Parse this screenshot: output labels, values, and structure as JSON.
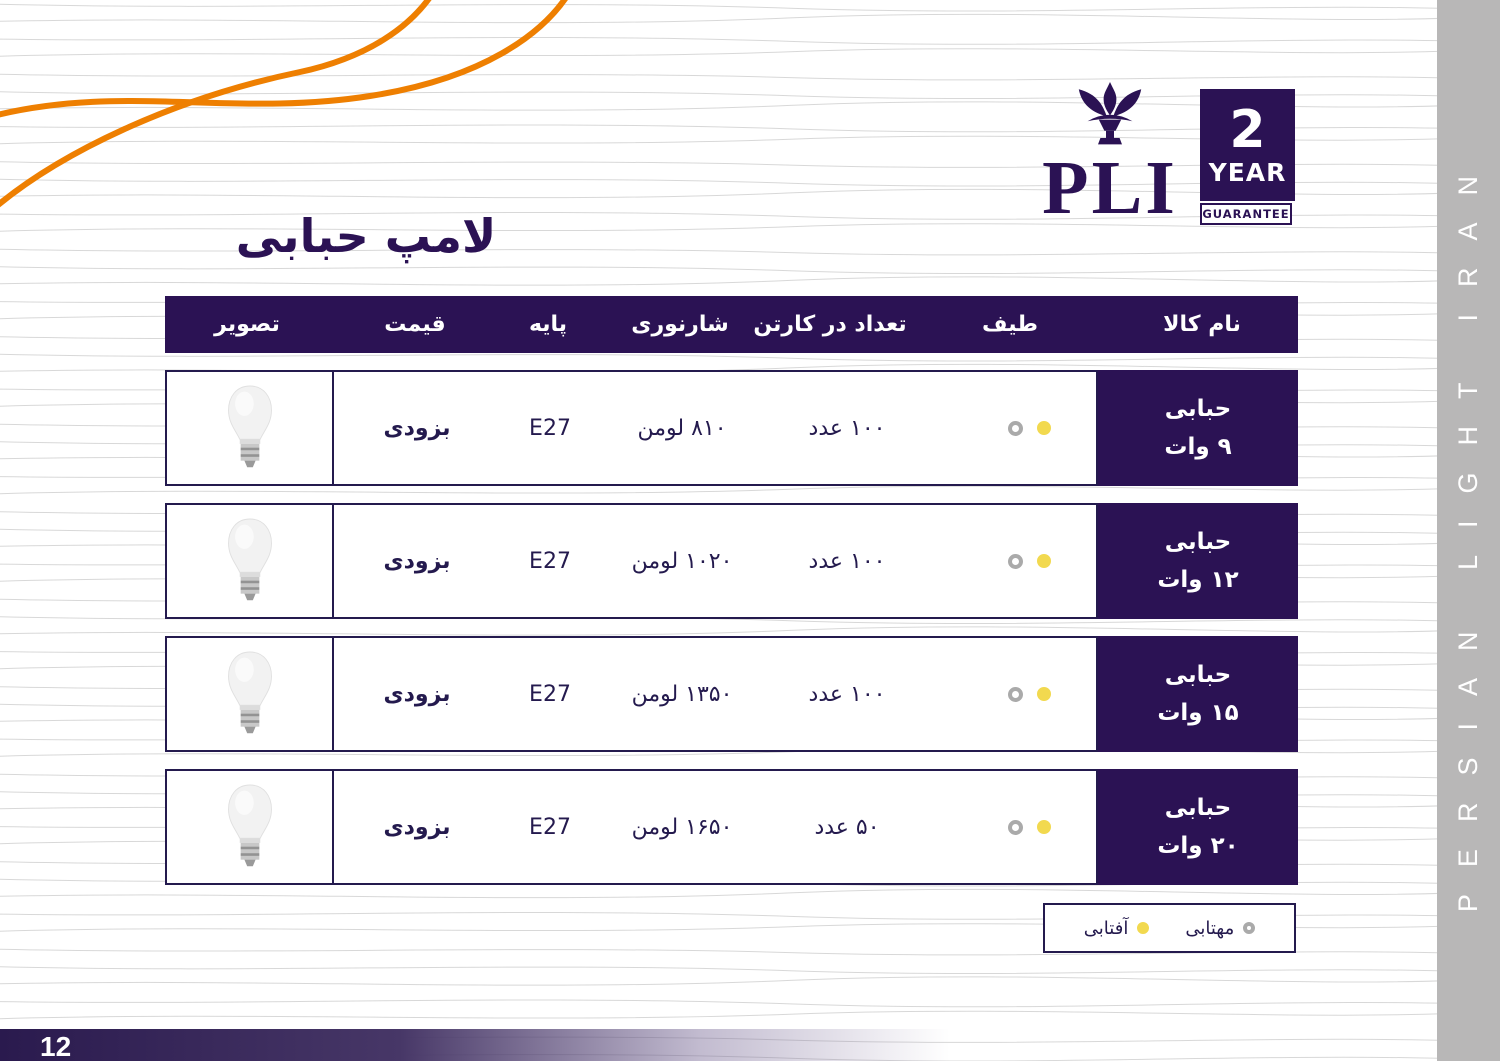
{
  "page": {
    "title": "لامپ حبابی",
    "page_number": "12",
    "side_text": "PERSIAN LIGHT IRAN"
  },
  "brand": {
    "logo_text": "PLI",
    "badge_number": "2",
    "badge_year": "YEAR",
    "badge_guarantee": "GUARANTEE"
  },
  "table": {
    "headers": {
      "name": "نام کالا",
      "spectrum": "طیف",
      "qty_per_carton": "تعداد در کارتن",
      "lumen": "شارنوری",
      "base": "پایه",
      "price": "قیمت",
      "image": "تصویر"
    },
    "rows": [
      {
        "name_line1": "حبابی",
        "name_line2": "۹ وات",
        "qty": "۱۰۰ عدد",
        "lumen": "۸۱۰ لومن",
        "base": "E27",
        "price": "بزودی"
      },
      {
        "name_line1": "حبابی",
        "name_line2": "۱۲ وات",
        "qty": "۱۰۰ عدد",
        "lumen": "۱۰۲۰ لومن",
        "base": "E27",
        "price": "بزودی"
      },
      {
        "name_line1": "حبابی",
        "name_line2": "۱۵ وات",
        "qty": "۱۰۰ عدد",
        "lumen": "۱۳۵۰ لومن",
        "base": "E27",
        "price": "بزودی"
      },
      {
        "name_line1": "حبابی",
        "name_line2": "۲۰ وات",
        "qty": "۵۰ عدد",
        "lumen": "۱۶۵۰ لومن",
        "base": "E27",
        "price": "بزودی"
      }
    ]
  },
  "legend": {
    "cool_label": "مهتابی",
    "warm_label": "آفتابی"
  },
  "colors": {
    "primary": "#2b1254",
    "orange": "#ee7f01",
    "warm_yellow": "#f2d94f",
    "cool_gray": "#aaaaaa",
    "sidebar_gray": "#b8b7b7"
  }
}
